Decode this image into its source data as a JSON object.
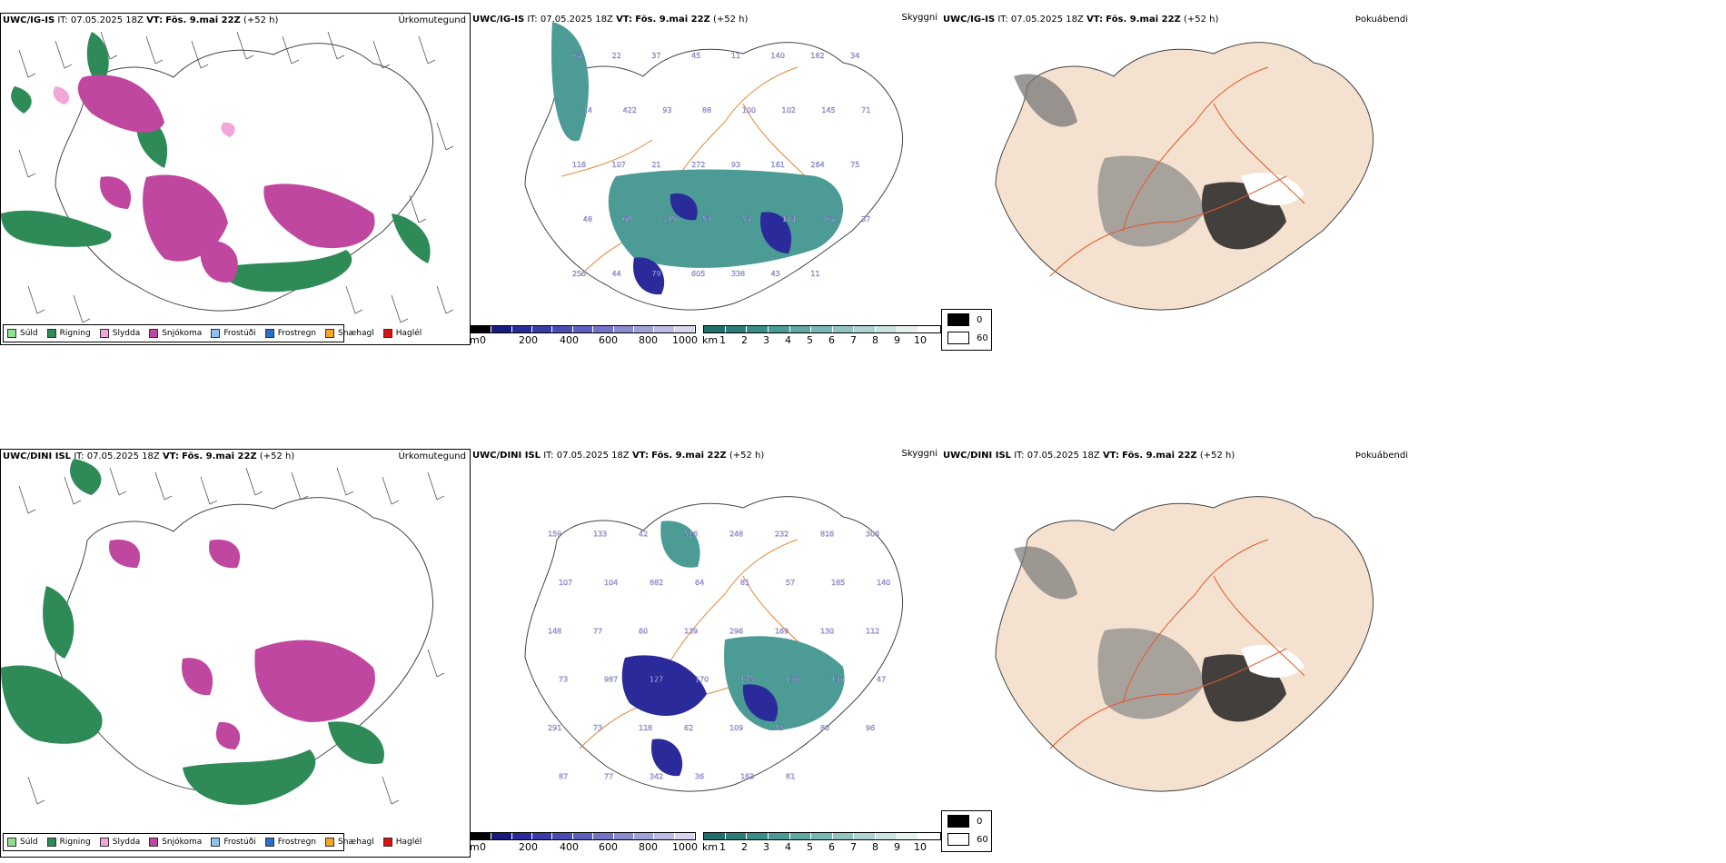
{
  "rows": [
    {
      "model": "UWC/IG-IS",
      "it_label": "IT:",
      "it": "07.05.2025 18Z",
      "vt_label": "VT:",
      "vt": "Fös. 9.mai 22Z",
      "lead": "(+52 h)"
    },
    {
      "model": "UWC/DINI ISL",
      "it_label": "IT:",
      "it": "07.05.2025 18Z",
      "vt_label": "VT:",
      "vt": "Fös. 9.mai 22Z",
      "lead": "(+52 h)"
    }
  ],
  "panels": {
    "precip_type": {
      "title": "Úrkomutegund"
    },
    "cloud_base": {
      "title": "Skyggni"
    },
    "fog": {
      "title": "Þokuábendi"
    }
  },
  "precip_legend": [
    {
      "label": "Súld",
      "color": "#8fe08f"
    },
    {
      "label": "Rigning",
      "color": "#2e8b57"
    },
    {
      "label": "Slydda",
      "color": "#f2a6d8"
    },
    {
      "label": "Snjókoma",
      "color": "#c0479f"
    },
    {
      "label": "Frostúði",
      "color": "#8cc3f0"
    },
    {
      "label": "Frostregn",
      "color": "#2a6fc9"
    },
    {
      "label": "Snæhagl",
      "color": "#f5a623"
    },
    {
      "label": "Haglél",
      "color": "#e01010"
    }
  ],
  "colorbar_m": {
    "unit": "m",
    "ticks": [
      "0",
      "200",
      "400",
      "600",
      "800",
      "1000"
    ],
    "colors": [
      "#000000",
      "#1a1a80",
      "#2a2a9a",
      "#3a3aa8",
      "#4b4bb4",
      "#5e5ec0",
      "#7373c8",
      "#8a8ad0",
      "#a2a2da",
      "#bcbce4",
      "#d6d6ee"
    ]
  },
  "colorbar_km": {
    "unit": "km",
    "ticks": [
      "1",
      "2",
      "3",
      "4",
      "5",
      "6",
      "7",
      "8",
      "9",
      "10"
    ],
    "colors": [
      "#1f6f6a",
      "#2b7d78",
      "#3a8c86",
      "#4c9b95",
      "#60a9a3",
      "#78b7b2",
      "#92c5c1",
      "#aed3d0",
      "#cbe2e0",
      "#e6f1f0",
      "#ffffff"
    ]
  },
  "cloud_legend": [
    {
      "label": "0",
      "color": "#000000"
    },
    {
      "label": "60",
      "color": "#ffffff"
    }
  ],
  "cloud_base_labels": {
    "row1": [
      "64",
      "22",
      "37",
      "45",
      "11",
      "140",
      "182",
      "34",
      "14",
      "422",
      "93",
      "88",
      "100",
      "102",
      "145",
      "71",
      "116",
      "107",
      "21",
      "272",
      "93",
      "161",
      "264",
      "75",
      "48",
      "60",
      "115",
      "53",
      "54",
      "134",
      "164",
      "37",
      "250",
      "44",
      "79",
      "605",
      "338",
      "43",
      "11"
    ],
    "row2": [
      "159",
      "133",
      "42",
      "516",
      "248",
      "232",
      "816",
      "306",
      "107",
      "104",
      "882",
      "64",
      "81",
      "57",
      "185",
      "140",
      "148",
      "77",
      "60",
      "139",
      "296",
      "169",
      "130",
      "112",
      "73",
      "987",
      "127",
      "170",
      "175",
      "136",
      "134",
      "47",
      "291",
      "73",
      "118",
      "62",
      "109",
      "85",
      "80",
      "96",
      "87",
      "77",
      "342",
      "36",
      "163",
      "81"
    ]
  }
}
